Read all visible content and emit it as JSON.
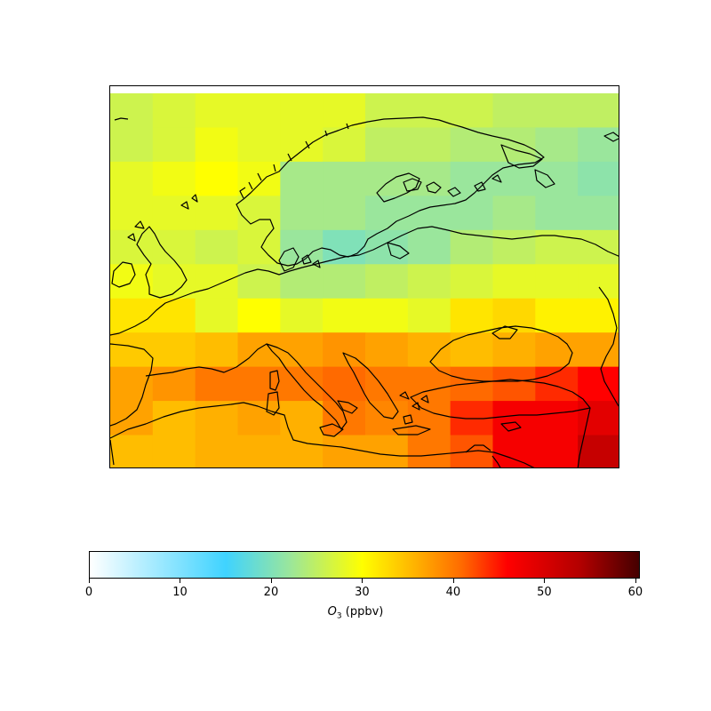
{
  "map": {
    "field": "O3",
    "grid_values_ppbv": [
      [
        26,
        27,
        28,
        28,
        28,
        28,
        26,
        26,
        26,
        25,
        25,
        25
      ],
      [
        26,
        27,
        29,
        28,
        28,
        27,
        25,
        25,
        24,
        24,
        23,
        22
      ],
      [
        28,
        29,
        30,
        29,
        23,
        23,
        23,
        23,
        22,
        22,
        22,
        21
      ],
      [
        28,
        28,
        28,
        27,
        23,
        23,
        22,
        22,
        22,
        23,
        22,
        22
      ],
      [
        27,
        27,
        26,
        27,
        22,
        20,
        21,
        22,
        24,
        25,
        26,
        26
      ],
      [
        29,
        28,
        28,
        26,
        24,
        24,
        25,
        26,
        27,
        28,
        28,
        28
      ],
      [
        32,
        32,
        28,
        30,
        28,
        29,
        29,
        28,
        32,
        33,
        31,
        31
      ],
      [
        34,
        34,
        35,
        37,
        37,
        38,
        37,
        36,
        35,
        36,
        37,
        37
      ],
      [
        37,
        38,
        40,
        40,
        40,
        41,
        40,
        40,
        41,
        42,
        44,
        46
      ],
      [
        37,
        35,
        36,
        37,
        36,
        40,
        39,
        40,
        44,
        47,
        47,
        49
      ],
      [
        35,
        35,
        36,
        36,
        36,
        37,
        37,
        40,
        42,
        47,
        47,
        52
      ]
    ]
  },
  "colorbar": {
    "label_symbol": "O",
    "label_subscript": "3",
    "label_unit": " (ppbv)",
    "min": 0,
    "max": 60.5,
    "ticks": [
      "0",
      "10",
      "20",
      "30",
      "40",
      "50",
      "60"
    ],
    "colormap_stops": [
      [
        0,
        "#ffffff"
      ],
      [
        15,
        "#3fd3ff"
      ],
      [
        22,
        "#9ae69c"
      ],
      [
        30,
        "#ffff00"
      ],
      [
        36,
        "#ffb000"
      ],
      [
        41,
        "#ff6a00"
      ],
      [
        46,
        "#ff0000"
      ],
      [
        54,
        "#b30000"
      ],
      [
        60.5,
        "#450000"
      ]
    ]
  }
}
